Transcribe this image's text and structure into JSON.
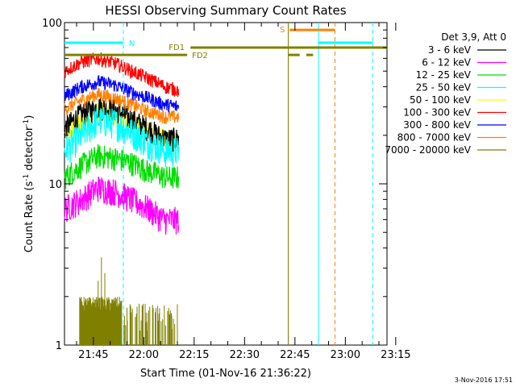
{
  "chart_data": {
    "type": "line",
    "title": "HESSI Observing Summary Count Rates",
    "xlabel": "Start Time (01-Nov-16 21:36:22)",
    "ylabel_main": "Count Rate (s",
    "ylabel_sup1": "-1",
    "ylabel_mid": " detector",
    "ylabel_sup2": "-1",
    "ylabel_end": ")",
    "y_scale": "log",
    "ylim": [
      1,
      100
    ],
    "y_ticks": [
      {
        "v": 1,
        "label": "1"
      },
      {
        "v": 10,
        "label": "10"
      },
      {
        "v": 100,
        "label": "100"
      }
    ],
    "xlim_minutes": [
      0,
      96
    ],
    "x_ticks": [
      {
        "t": 8.6,
        "label": "21:45"
      },
      {
        "t": 23.6,
        "label": "22:00"
      },
      {
        "t": 38.6,
        "label": "22:15"
      },
      {
        "t": 53.6,
        "label": "22:30"
      },
      {
        "t": 68.6,
        "label": "22:45"
      },
      {
        "t": 83.6,
        "label": "23:00"
      },
      {
        "t": 98.6,
        "label": "23:15"
      }
    ],
    "legend_title": "Det 3,9, Att 0",
    "legend_position": "top-right",
    "series": [
      {
        "name": "3 - 6 keV",
        "color": "#000000",
        "points": [
          [
            0,
            22
          ],
          [
            5,
            27
          ],
          [
            10,
            30
          ],
          [
            15,
            29
          ],
          [
            20,
            25
          ],
          [
            25,
            22
          ],
          [
            28,
            20
          ],
          [
            30,
            19
          ],
          [
            34,
            19
          ]
        ]
      },
      {
        "name": "6 - 12 keV",
        "color": "#ff00ff",
        "points": [
          [
            0,
            7.0
          ],
          [
            5,
            8.0
          ],
          [
            10,
            9.5
          ],
          [
            15,
            9.0
          ],
          [
            20,
            8.0
          ],
          [
            25,
            7.0
          ],
          [
            28,
            6.3
          ],
          [
            30,
            6.0
          ],
          [
            34,
            6.0
          ]
        ]
      },
      {
        "name": "12 - 25 keV",
        "color": "#00dd00",
        "points": [
          [
            0,
            11
          ],
          [
            5,
            13
          ],
          [
            10,
            15
          ],
          [
            15,
            14.5
          ],
          [
            20,
            13.5
          ],
          [
            25,
            12
          ],
          [
            28,
            11.5
          ],
          [
            30,
            11
          ],
          [
            34,
            11
          ]
        ]
      },
      {
        "name": "25 - 50 keV",
        "color": "#00ffff",
        "points": [
          [
            0,
            16
          ],
          [
            5,
            20
          ],
          [
            10,
            25
          ],
          [
            15,
            24
          ],
          [
            20,
            21
          ],
          [
            25,
            18
          ],
          [
            28,
            17
          ],
          [
            30,
            16
          ],
          [
            34,
            16
          ]
        ]
      },
      {
        "name": "50 - 100 keV",
        "color": "#ffff00",
        "points": [
          [
            0,
            20
          ],
          [
            5,
            24
          ],
          [
            10,
            28
          ],
          [
            15,
            27
          ],
          [
            20,
            24
          ],
          [
            25,
            21
          ],
          [
            28,
            20
          ],
          [
            30,
            19
          ],
          [
            34,
            19
          ]
        ]
      },
      {
        "name": "100 - 300 keV",
        "color": "#ff0000",
        "points": [
          [
            0,
            50
          ],
          [
            5,
            57
          ],
          [
            10,
            60
          ],
          [
            15,
            56
          ],
          [
            20,
            50
          ],
          [
            25,
            45
          ],
          [
            28,
            42
          ],
          [
            30,
            40
          ],
          [
            34,
            38
          ]
        ]
      },
      {
        "name": "300 - 800 keV",
        "color": "#0000ff",
        "points": [
          [
            0,
            35
          ],
          [
            5,
            40
          ],
          [
            10,
            43
          ],
          [
            15,
            41
          ],
          [
            20,
            37
          ],
          [
            25,
            34
          ],
          [
            28,
            32
          ],
          [
            30,
            31
          ],
          [
            34,
            30
          ]
        ]
      },
      {
        "name": "800 - 7000 keV",
        "color": "#ff8000",
        "points": [
          [
            0,
            29
          ],
          [
            5,
            33
          ],
          [
            10,
            36
          ],
          [
            15,
            34
          ],
          [
            20,
            31
          ],
          [
            25,
            28
          ],
          [
            28,
            27
          ],
          [
            30,
            26
          ],
          [
            34,
            26
          ]
        ]
      },
      {
        "name": "7000 - 20000 keV",
        "color": "#808000",
        "points": []
      }
    ],
    "spike_series": {
      "name": "7000 - 20000 keV",
      "color": "#808000",
      "dense_start": 4.5,
      "dense_end": 17,
      "sparse_end": 34,
      "base": 1,
      "dense_level": 1.9,
      "sparse_level": 1.3,
      "peaks": [
        {
          "t": 11,
          "v": 3.5
        },
        {
          "t": 12,
          "v": 2.8
        },
        {
          "t": 10,
          "v": 2.5
        },
        {
          "t": 24,
          "v": 1.8
        },
        {
          "t": 27,
          "v": 1.6
        },
        {
          "t": 31,
          "v": 1.7
        }
      ]
    },
    "annotations": {
      "night_label": "N",
      "saa_label": "S",
      "flare_label_1": "FD1",
      "flare_label_2": "FD2",
      "night_bars": [
        {
          "t0": 0,
          "t1": 17.5,
          "y": 75
        },
        {
          "t0": 75.6,
          "t1": 91.8,
          "y": 75
        }
      ],
      "saa_bar": {
        "t0": 67,
        "t1": 80.5,
        "y": 90
      },
      "fd1_bar": {
        "t0": 37.5,
        "t1": 96,
        "y": 70
      },
      "fd2_bar": {
        "t0": 0,
        "t1": 36.5,
        "y": 63
      },
      "gap_dashes": [
        {
          "t0": 66.5,
          "t1": 70,
          "y": 63
        },
        {
          "t0": 71,
          "t1": 72.5,
          "y": 70
        },
        {
          "t0": 72,
          "t1": 74,
          "y": 63
        }
      ],
      "vlines": [
        {
          "t": 17.5,
          "color": "#00ffff",
          "dash": true
        },
        {
          "t": 66.6,
          "color": "#808000",
          "dash": false
        },
        {
          "t": 75.6,
          "color": "#00ffff",
          "dash": false
        },
        {
          "t": 80.5,
          "color": "#ff8000",
          "dash": true
        },
        {
          "t": 91.8,
          "color": "#00ffff",
          "dash": true
        }
      ],
      "colors": {
        "night": "#00ffff",
        "saa": "#ff8000",
        "flare": "#808000"
      }
    },
    "timestamp": "3-Nov-2016 17:51"
  }
}
